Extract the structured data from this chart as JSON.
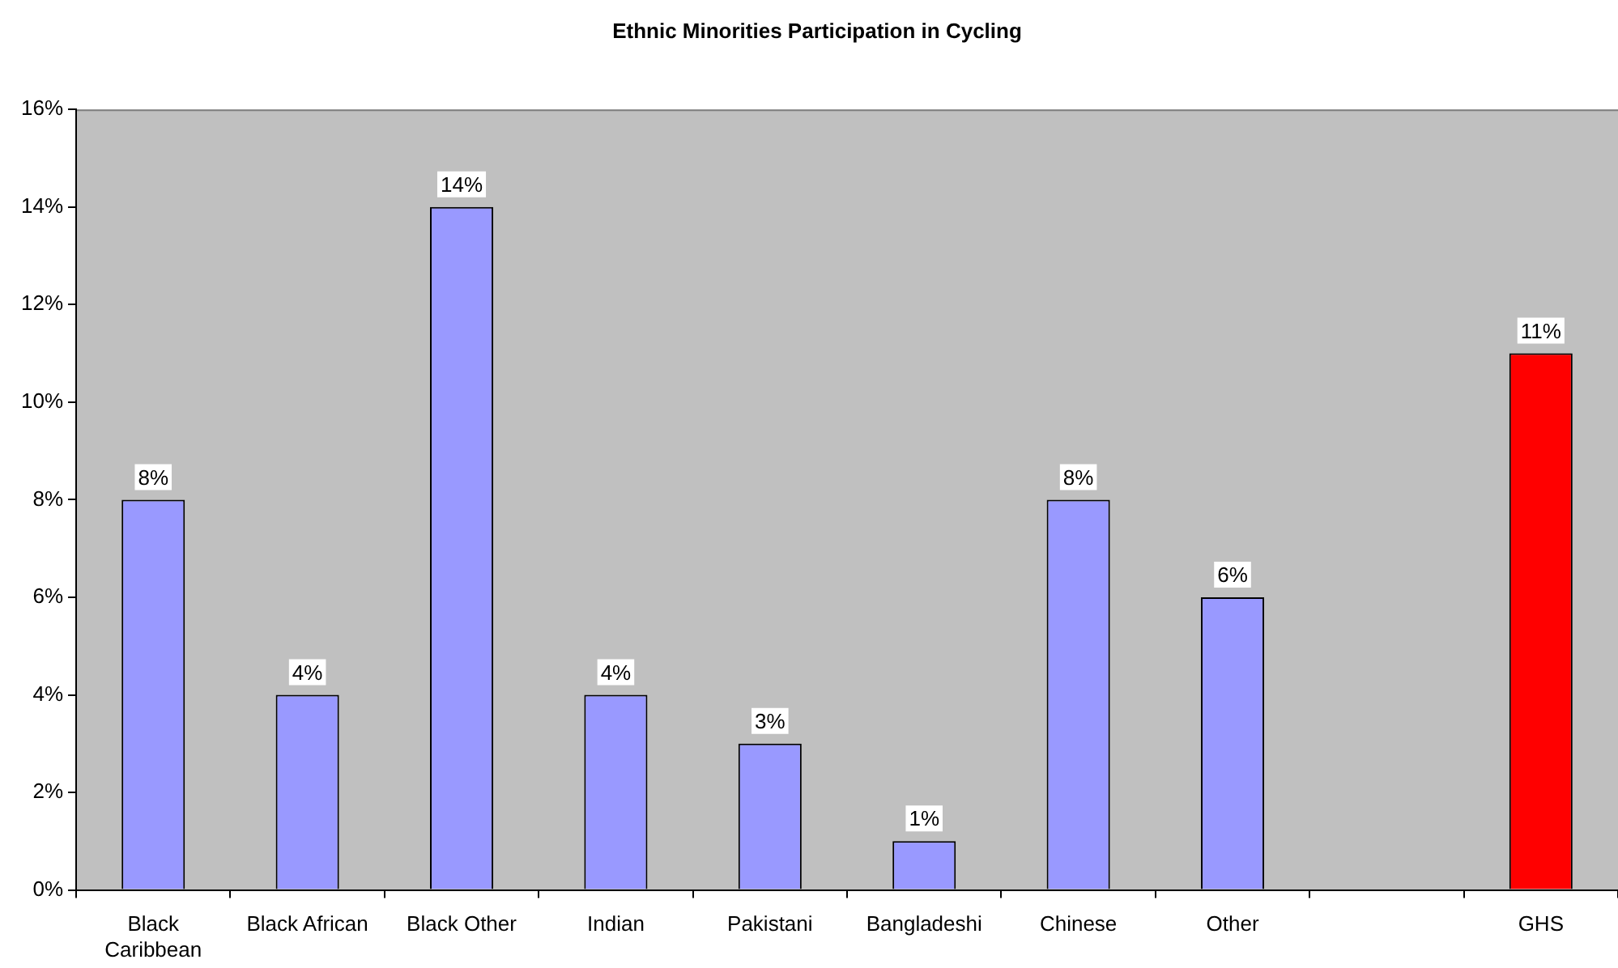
{
  "chart_data": {
    "type": "bar",
    "title": "Ethnic Minorities Participation in Cycling",
    "categories": [
      "Black Caribbean",
      "Black African",
      "Black Other",
      "Indian",
      "Pakistani",
      "Bangladeshi",
      "Chinese",
      "Other",
      null,
      "GHS"
    ],
    "values": [
      8,
      4,
      14,
      4,
      3,
      1,
      8,
      6,
      null,
      11
    ],
    "colors": [
      "#9999ff",
      "#9999ff",
      "#9999ff",
      "#9999ff",
      "#9999ff",
      "#9999ff",
      "#9999ff",
      "#9999ff",
      "#9999ff",
      "#ff0000"
    ],
    "value_labels": [
      "8%",
      "4%",
      "14%",
      "4%",
      "3%",
      "1%",
      "8%",
      "6%",
      null,
      "11%"
    ],
    "ylim": [
      0,
      16
    ],
    "yticks": [
      {
        "value": 0,
        "label": "0%"
      },
      {
        "value": 2,
        "label": "2%"
      },
      {
        "value": 4,
        "label": "4%"
      },
      {
        "value": 6,
        "label": "6%"
      },
      {
        "value": 8,
        "label": "8%"
      },
      {
        "value": 10,
        "label": "10%"
      },
      {
        "value": 12,
        "label": "12%"
      },
      {
        "value": 14,
        "label": "14%"
      },
      {
        "value": 16,
        "label": "16%"
      }
    ],
    "grid": false,
    "legend": false
  }
}
